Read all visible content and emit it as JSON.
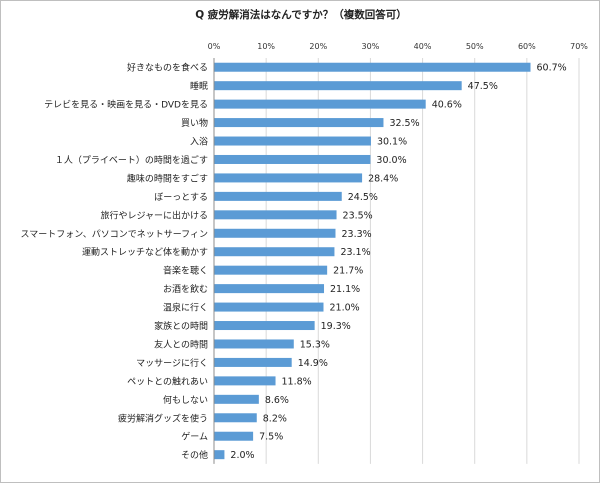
{
  "chart_data": {
    "type": "bar",
    "orientation": "horizontal",
    "title": "Q 疲労解消法はなんですか？（複数回答可）",
    "xlabel": "",
    "ylabel": "",
    "xlim": [
      0,
      70
    ],
    "tick_values": [
      0,
      10,
      20,
      30,
      40,
      50,
      60,
      70
    ],
    "tick_labels": [
      "0%",
      "10%",
      "20%",
      "30%",
      "40%",
      "50%",
      "60%",
      "70%"
    ],
    "grid": true,
    "legend": "none",
    "bar_color": "#5b9bd5",
    "categories": [
      "好きなものを食べる",
      "睡眠",
      "テレビを見る・映画を見る・DVDを見る",
      "買い物",
      "入浴",
      "１人（プライベート）の時間を過ごす",
      "趣味の時間をすごす",
      "ぼーっとする",
      "旅行やレジャーに出かける",
      "スマートフォン、パソコンでネットサーフィン",
      "運動ストレッチなど体を動かす",
      "音楽を聴く",
      "お酒を飲む",
      "温泉に行く",
      "家族との時間",
      "友人との時間",
      "マッサージに行く",
      "ペットとの触れあい",
      "何もしない",
      "疲労解消グッズを使う",
      "ゲーム",
      "その他"
    ],
    "values": [
      60.7,
      47.5,
      40.6,
      32.5,
      30.1,
      30.0,
      28.4,
      24.5,
      23.5,
      23.3,
      23.1,
      21.7,
      21.1,
      21.0,
      19.3,
      15.3,
      14.9,
      11.8,
      8.6,
      8.2,
      7.5,
      2.0
    ],
    "value_labels": [
      "60.7%",
      "47.5%",
      "40.6%",
      "32.5%",
      "30.1%",
      "30.0%",
      "28.4%",
      "24.5%",
      "23.5%",
      "23.3%",
      "23.1%",
      "21.7%",
      "21.1%",
      "21.0%",
      "19.3%",
      "15.3%",
      "14.9%",
      "11.8%",
      "8.6%",
      "8.2%",
      "7.5%",
      "2.0%"
    ]
  }
}
